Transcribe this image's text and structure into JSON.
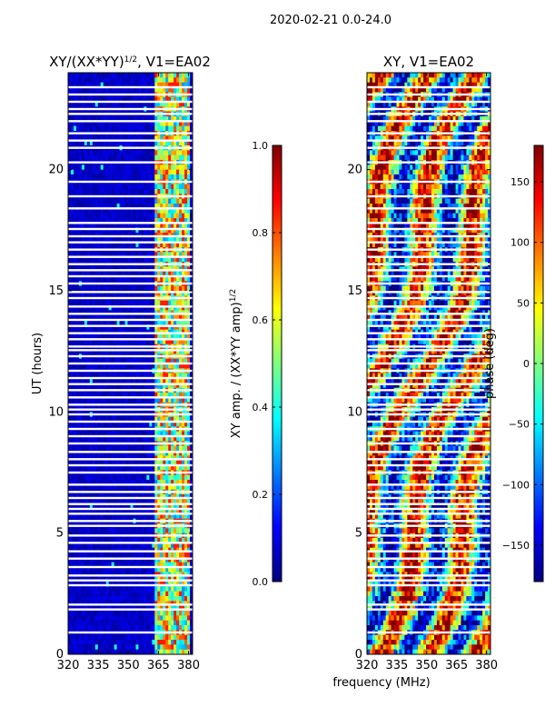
{
  "suptitle": "2020-02-21 0.0-24.0",
  "xlabel_shared": "frequency (MHz)",
  "colors": {
    "jet": [
      "#00007f",
      "#0000ff",
      "#007fff",
      "#00ffff",
      "#7fff7f",
      "#ffff00",
      "#ff7f00",
      "#ff0000",
      "#7f0000"
    ],
    "flag": "#ffffff"
  },
  "chart_data": [
    {
      "type": "heatmap",
      "title": "XY/(XX*YY)^{1/2}, V1=EA02",
      "title_main": "XY/(XX*YY)",
      "title_sup": "1/2",
      "title_tail": ", V1=EA02",
      "xlabel": "",
      "ylabel": "UT (hours)",
      "xlim": [
        320,
        382
      ],
      "ylim": [
        0,
        24
      ],
      "xticks": [
        "320",
        "335",
        "350",
        "365",
        "380"
      ],
      "xtick_values": [
        320,
        335,
        350,
        365,
        380
      ],
      "yticks": [
        "0",
        "5",
        "10",
        "15",
        "20"
      ],
      "ytick_values": [
        0,
        5,
        10,
        15,
        20
      ],
      "colorbar": {
        "label": "XY amp. / (XX*YY amp)^{1/2}",
        "label_main": "XY amp. / (XX*YY amp)",
        "label_sup": "1/2",
        "range": [
          0.0,
          1.0
        ],
        "ticks": [
          "0.0",
          "0.2",
          "0.4",
          "0.6",
          "0.8",
          "1.0"
        ],
        "tick_values": [
          0.0,
          0.2,
          0.4,
          0.6,
          0.8,
          1.0
        ]
      },
      "description_values": {
        "background_level": 0.05,
        "bright_band_MHz": [
          363,
          380
        ],
        "bright_band_level": 0.5
      }
    },
    {
      "type": "heatmap",
      "title": "XY, V1=EA02",
      "xlabel": "frequency (MHz)",
      "ylabel": "",
      "xlim": [
        320,
        382
      ],
      "ylim": [
        0,
        24
      ],
      "xticks": [
        "320",
        "335",
        "350",
        "365",
        "380"
      ],
      "xtick_values": [
        320,
        335,
        350,
        365,
        380
      ],
      "yticks": [
        "0",
        "5",
        "10",
        "15",
        "20"
      ],
      "ytick_values": [
        0,
        5,
        10,
        15,
        20
      ],
      "colorbar": {
        "label": "phase (deg)",
        "range": [
          -180,
          180
        ],
        "ticks": [
          "−150",
          "−100",
          "−50",
          "0",
          "50",
          "100",
          "150"
        ],
        "tick_values": [
          -150,
          -100,
          -50,
          0,
          50,
          100,
          150
        ]
      }
    }
  ],
  "flagged_rows_hours": [
    0.9,
    1.85,
    2.05,
    2.85,
    3.05,
    3.25,
    3.6,
    3.95,
    4.25,
    4.6,
    4.9,
    5.3,
    5.5,
    5.8,
    6.0,
    6.2,
    6.45,
    6.7,
    7.0,
    7.5,
    7.8,
    8.05,
    8.35,
    8.7,
    9.0,
    9.3,
    9.6,
    9.9,
    10.1,
    10.3,
    10.6,
    10.9,
    11.15,
    11.4,
    11.7,
    12.0,
    12.3,
    12.55,
    12.7,
    13.0,
    13.25,
    13.55,
    13.8,
    14.05,
    14.35,
    14.7,
    14.95,
    15.3,
    15.6,
    15.85,
    16.1,
    16.4,
    16.7,
    17.0,
    17.25,
    17.55,
    17.8,
    18.4,
    18.9,
    19.5,
    20.3,
    20.9,
    21.2,
    21.5,
    22.0,
    22.3,
    22.5,
    22.8,
    23.1,
    23.4
  ]
}
